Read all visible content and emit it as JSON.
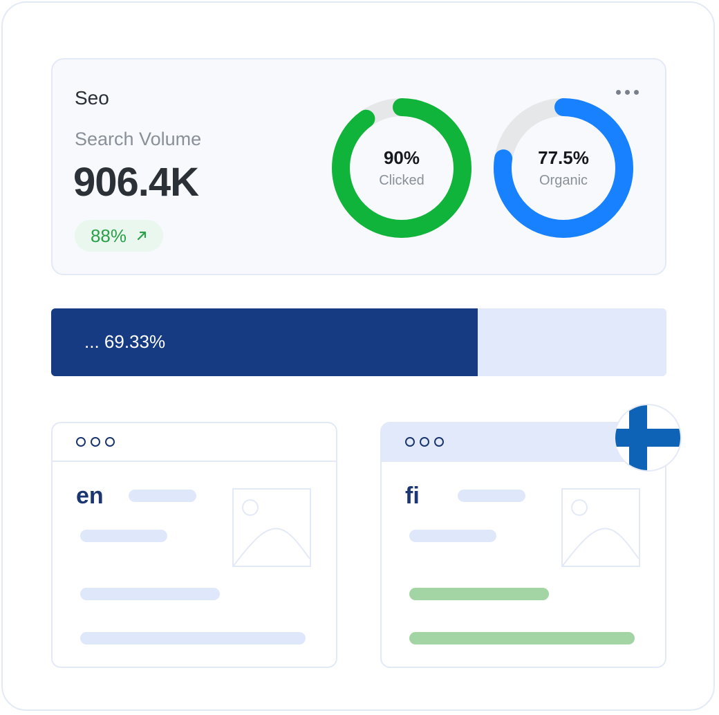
{
  "seo_card": {
    "title": "Seo",
    "metric_label": "Search Volume",
    "metric_value": "906.4K",
    "growth": "88%",
    "growth_icon": "arrow-up-right-icon",
    "menu_icon": "more-horizontal-icon"
  },
  "donuts": [
    {
      "value_text": "90%",
      "label": "Clicked",
      "fraction": 0.9,
      "color": "#11b43a"
    },
    {
      "value_text": "77.5%",
      "label": "Organic",
      "fraction": 0.775,
      "color": "#1781ff"
    }
  ],
  "progress": {
    "text": "... 69.33%",
    "fraction": 0.6933,
    "fill_color": "#173b82",
    "track_color": "#e1e9fb"
  },
  "browsers": [
    {
      "lang": "en",
      "accent": "blue"
    },
    {
      "lang": "fi",
      "accent": "green",
      "flag_icon": "finland-flag-icon"
    }
  ]
}
